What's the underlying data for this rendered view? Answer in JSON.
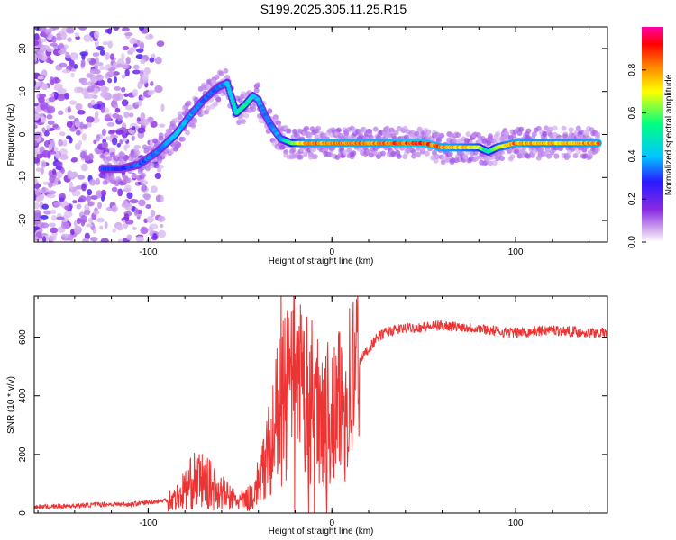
{
  "title": "S199.2025.305.11.25.R15",
  "chart_data": [
    {
      "type": "heatmap",
      "xlabel": "Height of straight line (km)",
      "ylabel": "Frequency (Hz)",
      "xlim": [
        -162,
        150
      ],
      "ylim": [
        -25,
        25
      ],
      "xticks": [
        -100,
        0,
        100
      ],
      "yticks": [
        -20,
        -10,
        0,
        10,
        20
      ],
      "colorbar": {
        "label": "Normalized spectral amplitude",
        "range": [
          0,
          1
        ],
        "ticks": [
          "0.0",
          "0.2",
          "0.4",
          "0.6",
          "0.8"
        ],
        "tick_values": [
          0.0,
          0.2,
          0.4,
          0.6,
          0.8
        ],
        "colors": [
          "#ffffff",
          "#d9b8f0",
          "#8a2be2",
          "#2a1aff",
          "#00c8ff",
          "#00ff80",
          "#ffff00",
          "#ff8000",
          "#ff0000",
          "#ff00aa"
        ]
      },
      "ridge": {
        "x": [
          -125,
          -115,
          -105,
          -95,
          -85,
          -78,
          -70,
          -62,
          -57,
          -52,
          -47,
          -43,
          -40,
          -37,
          -33,
          -28,
          -22,
          -15,
          -8,
          0,
          10,
          20,
          30,
          40,
          50,
          60,
          70,
          80,
          85,
          90,
          100,
          110,
          120,
          130,
          145
        ],
        "y": [
          -8,
          -8,
          -7,
          -4,
          0,
          4,
          8,
          11,
          12,
          5,
          7,
          9,
          8,
          5,
          2,
          -1,
          -2,
          -2,
          -2,
          -2,
          -2,
          -2,
          -2,
          -2,
          -2,
          -3,
          -3,
          -3,
          -4,
          -3,
          -2,
          -2,
          -2,
          -2,
          -2
        ],
        "amplitude": [
          0.35,
          0.3,
          0.35,
          0.35,
          0.45,
          0.4,
          0.35,
          0.35,
          0.4,
          0.55,
          0.55,
          0.45,
          0.4,
          0.35,
          0.35,
          0.4,
          0.6,
          0.8,
          0.85,
          0.85,
          0.85,
          0.85,
          0.85,
          0.9,
          0.9,
          0.85,
          0.8,
          0.7,
          0.5,
          0.7,
          0.85,
          0.8,
          0.8,
          0.8,
          0.85
        ]
      }
    },
    {
      "type": "line",
      "xlabel": "Height of straight line (km)",
      "ylabel": "SNR (10 * v/v)",
      "xlim": [
        -162,
        150
      ],
      "ylim": [
        0,
        740
      ],
      "xticks": [
        -100,
        0,
        100
      ],
      "yticks": [
        0,
        200,
        400,
        600
      ],
      "series": [
        {
          "name": "SNR",
          "color": "#ee3333",
          "x": [
            -162,
            -140,
            -125,
            -110,
            -95,
            -85,
            -80,
            -75,
            -70,
            -65,
            -60,
            -55,
            -50,
            -45,
            -40,
            -35,
            -30,
            -25,
            -20,
            -15,
            -10,
            -5,
            0,
            5,
            10,
            15,
            20,
            25,
            30,
            40,
            50,
            60,
            70,
            80,
            90,
            100,
            110,
            120,
            130,
            140,
            150
          ],
          "y": [
            20,
            25,
            30,
            30,
            40,
            50,
            80,
            110,
            110,
            90,
            70,
            50,
            40,
            50,
            100,
            200,
            320,
            400,
            420,
            400,
            380,
            350,
            320,
            370,
            430,
            520,
            560,
            600,
            620,
            630,
            635,
            640,
            635,
            630,
            620,
            615,
            620,
            625,
            620,
            615,
            615
          ]
        }
      ]
    }
  ]
}
